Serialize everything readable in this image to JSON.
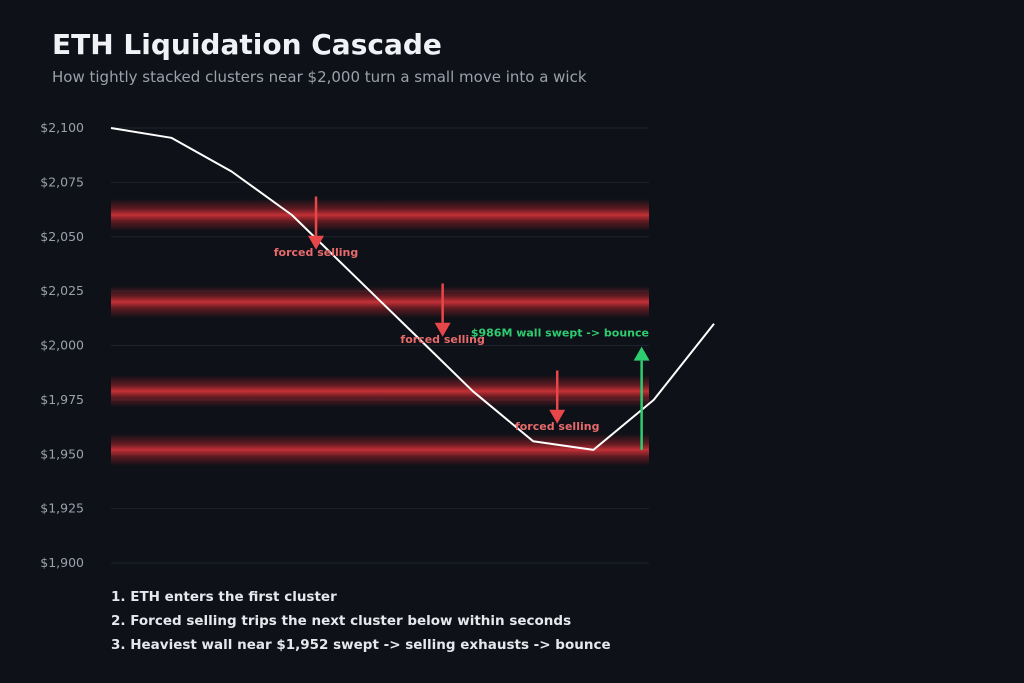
{
  "header": {
    "title": "ETH Liquidation Cascade",
    "subtitle": "How tightly stacked clusters near $2,000 turn a small move into a wick"
  },
  "colors": {
    "background": "#0e1117",
    "price_line": "#ffffff",
    "cluster": "#c0262d",
    "sell_arrow": "#e8474a",
    "bounce_arrow": "#2ecc71",
    "grid": "#1f232b"
  },
  "chart_data": {
    "type": "line",
    "ylim": [
      1900,
      2100
    ],
    "y_ticks": [
      2100,
      2075,
      2050,
      2025,
      2000,
      1975,
      1950,
      1925,
      1900
    ],
    "y_tick_labels": [
      "$2,100",
      "$2,075",
      "$2,050",
      "$2,025",
      "$2,000",
      "$1,975",
      "$1,950",
      "$1,925",
      "$1,900"
    ],
    "grid": true,
    "series": [
      {
        "values": [
          2100,
          2095.5,
          2080,
          2060,
          2033,
          2006,
          1979,
          1956,
          1952,
          1975,
          2010
        ]
      }
    ],
    "liquidation_clusters": [
      2060,
      2020,
      1979,
      1952
    ],
    "annotations": [
      {
        "type": "arrow-down",
        "x": 3.4,
        "from": 2068.5,
        "to": 2044,
        "label": "forced selling",
        "label_y": 2043
      },
      {
        "type": "arrow-down",
        "x": 5.5,
        "from": 2028.5,
        "to": 2004,
        "label": "forced selling",
        "label_y": 2003
      },
      {
        "type": "arrow-down",
        "x": 7.4,
        "from": 1988.5,
        "to": 1964,
        "label": "forced selling",
        "label_y": 1963
      },
      {
        "type": "arrow-up",
        "x": 8.8,
        "from": 1952,
        "to": 1999.5,
        "label": "$986M wall swept -> bounce",
        "label_y": 2006
      }
    ]
  },
  "steps": [
    "1. ETH enters the first cluster",
    "2. Forced selling trips the next cluster below within seconds",
    "3. Heaviest wall near $1,952 swept -> selling exhausts -> bounce"
  ]
}
